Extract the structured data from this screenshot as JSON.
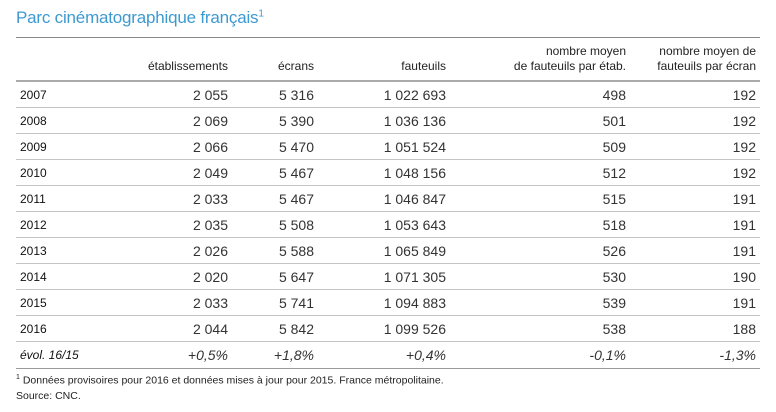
{
  "title": "Parc cinématographique français",
  "title_footnote_marker": "1",
  "colors": {
    "title": "#3d9ad1"
  },
  "table": {
    "headers": [
      "",
      "établissements",
      "écrans",
      "fauteuils",
      [
        "nombre moyen",
        "de fauteuils par étab."
      ],
      [
        "nombre moyen de",
        "fauteuils par écran"
      ]
    ],
    "rows": [
      [
        "2007",
        "2 055",
        "5 316",
        "1 022 693",
        "498",
        "192"
      ],
      [
        "2008",
        "2 069",
        "5 390",
        "1 036 136",
        "501",
        "192"
      ],
      [
        "2009",
        "2 066",
        "5 470",
        "1 051 524",
        "509",
        "192"
      ],
      [
        "2010",
        "2 049",
        "5 467",
        "1 048 156",
        "512",
        "192"
      ],
      [
        "2011",
        "2 033",
        "5 467",
        "1 046 847",
        "515",
        "191"
      ],
      [
        "2012",
        "2 035",
        "5 508",
        "1 053 643",
        "518",
        "191"
      ],
      [
        "2013",
        "2 026",
        "5 588",
        "1 065 849",
        "526",
        "191"
      ],
      [
        "2014",
        "2 020",
        "5 647",
        "1 071 305",
        "530",
        "190"
      ],
      [
        "2015",
        "2 033",
        "5 741",
        "1 094 883",
        "539",
        "191"
      ],
      [
        "2016",
        "2 044",
        "5 842",
        "1 099 526",
        "538",
        "188"
      ]
    ],
    "evol": [
      "évol. 16/15",
      "+0,5%",
      "+1,8%",
      "+0,4%",
      "-0,1%",
      "-1,3%"
    ]
  },
  "footnote": {
    "marker": "1",
    "text": "Données provisoires pour 2016 et données mises à jour pour 2015. France métropolitaine."
  },
  "source": "Source: CNC."
}
